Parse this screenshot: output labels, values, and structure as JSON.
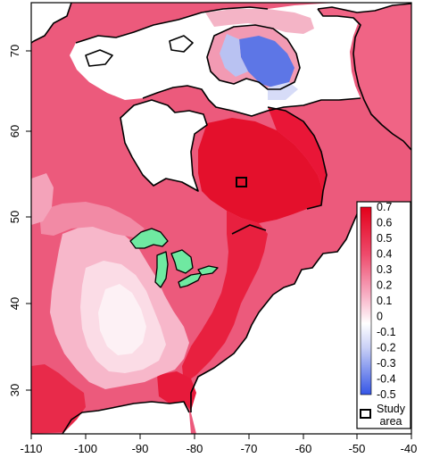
{
  "map": {
    "x_ticks": [
      "-110",
      "-100",
      "-90",
      "-80",
      "-70",
      "-60",
      "-50",
      "-40"
    ],
    "y_ticks": [
      "30",
      "40",
      "50",
      "60",
      "70"
    ],
    "colors": {
      "high": "#e8112d",
      "mid": "#f06a8a",
      "low": "#f7c2d2",
      "zero": "#ffffff",
      "negative": "#3f59e0",
      "lakes": "#6ee8a2",
      "water": "#ffffff",
      "coast": "#000000"
    }
  },
  "legend": {
    "scale_labels": [
      "0.7",
      "0.6",
      "0.5",
      "0.4",
      "0.3",
      "0.2",
      "0.1",
      "0",
      "-0.1",
      "-0.2",
      "-0.3",
      "-0.4",
      "-0.5"
    ],
    "study_area_label_line1": "Study",
    "study_area_label_line2": "area"
  }
}
